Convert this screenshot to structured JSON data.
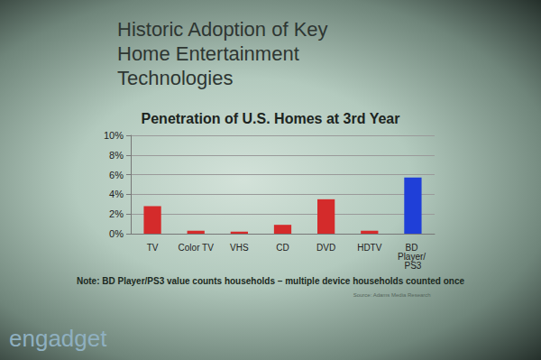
{
  "chart_data": {
    "type": "bar",
    "title": "Historic Adoption of Key Home Entertainment Technologies",
    "subtitle": "Penetration of U.S. Homes at 3rd Year",
    "categories": [
      "TV",
      "Color TV",
      "VHS",
      "CD",
      "DVD",
      "HDTV",
      "BD Player/ PS3"
    ],
    "values": [
      2.8,
      0.3,
      0.2,
      0.9,
      3.5,
      0.3,
      5.7
    ],
    "colors": [
      "#d42b2b",
      "#d42b2b",
      "#d42b2b",
      "#d42b2b",
      "#d42b2b",
      "#d42b2b",
      "#1f3fd8"
    ],
    "ylim": [
      0,
      10
    ],
    "yticks": [
      {
        "value": 0,
        "label": "0%"
      },
      {
        "value": 2,
        "label": "2%"
      },
      {
        "value": 4,
        "label": "4%"
      },
      {
        "value": 6,
        "label": "6%"
      },
      {
        "value": 8,
        "label": "8%"
      },
      {
        "value": 10,
        "label": "10%"
      }
    ],
    "grid": true,
    "annotations": [
      "Note: BD Player/PS3 value counts households – multiple device households counted once",
      "Source: Adams Media Research",
      "engadget"
    ]
  }
}
